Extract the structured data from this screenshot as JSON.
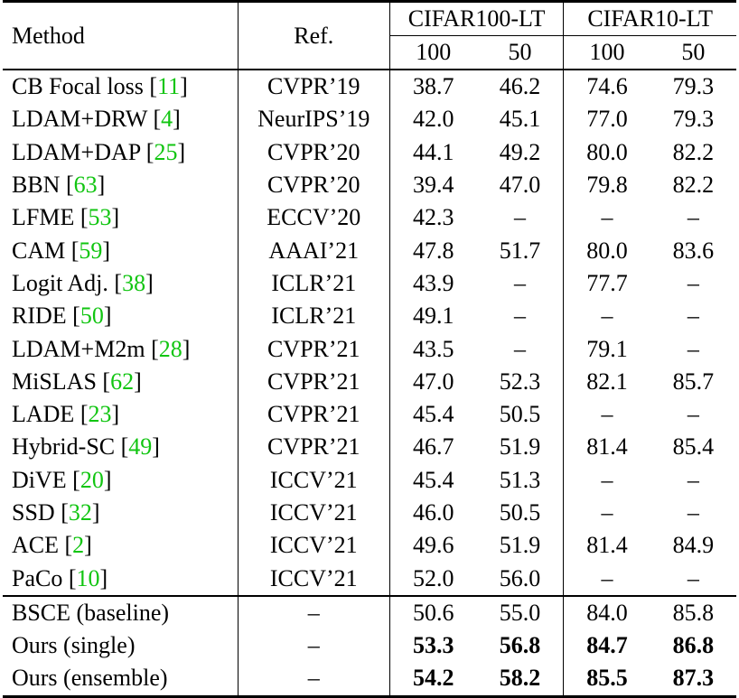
{
  "table": {
    "headers": {
      "method": "Method",
      "ref": "Ref.",
      "group1": "CIFAR100-LT",
      "group2": "CIFAR10-LT",
      "sub": [
        "100",
        "50",
        "100",
        "50"
      ]
    },
    "rows": [
      {
        "name": "CB Focal loss ",
        "cite": "11",
        "ref": "CVPR’19",
        "v": [
          "38.7",
          "46.2",
          "74.6",
          "79.3"
        ]
      },
      {
        "name": "LDAM+DRW ",
        "cite": "4",
        "ref": "NeurIPS’19",
        "v": [
          "42.0",
          "45.1",
          "77.0",
          "79.3"
        ]
      },
      {
        "name": "LDAM+DAP ",
        "cite": "25",
        "ref": "CVPR’20",
        "v": [
          "44.1",
          "49.2",
          "80.0",
          "82.2"
        ]
      },
      {
        "name": "BBN ",
        "cite": "63",
        "ref": "CVPR’20",
        "v": [
          "39.4",
          "47.0",
          "79.8",
          "82.2"
        ]
      },
      {
        "name": "LFME ",
        "cite": "53",
        "ref": "ECCV’20",
        "v": [
          "42.3",
          "–",
          "–",
          "–"
        ]
      },
      {
        "name": "CAM ",
        "cite": "59",
        "ref": "AAAI’21",
        "v": [
          "47.8",
          "51.7",
          "80.0",
          "83.6"
        ]
      },
      {
        "name": "Logit Adj. ",
        "cite": "38",
        "ref": "ICLR’21",
        "v": [
          "43.9",
          "–",
          "77.7",
          "–"
        ]
      },
      {
        "name": "RIDE ",
        "cite": "50",
        "ref": "ICLR’21",
        "v": [
          "49.1",
          "–",
          "–",
          "–"
        ]
      },
      {
        "name": "LDAM+M2m ",
        "cite": "28",
        "ref": "CVPR’21",
        "v": [
          "43.5",
          "–",
          "79.1",
          "–"
        ]
      },
      {
        "name": "MiSLAS ",
        "cite": "62",
        "ref": "CVPR’21",
        "v": [
          "47.0",
          "52.3",
          "82.1",
          "85.7"
        ]
      },
      {
        "name": "LADE ",
        "cite": "23",
        "ref": "CVPR’21",
        "v": [
          "45.4",
          "50.5",
          "–",
          "–"
        ]
      },
      {
        "name": "Hybrid-SC ",
        "cite": "49",
        "ref": "CVPR’21",
        "v": [
          "46.7",
          "51.9",
          "81.4",
          "85.4"
        ]
      },
      {
        "name": "DiVE ",
        "cite": "20",
        "ref": "ICCV’21",
        "v": [
          "45.4",
          "51.3",
          "–",
          "–"
        ]
      },
      {
        "name": "SSD ",
        "cite": "32",
        "ref": "ICCV’21",
        "v": [
          "46.0",
          "50.5",
          "–",
          "–"
        ]
      },
      {
        "name": "ACE ",
        "cite": "2",
        "ref": "ICCV’21",
        "v": [
          "49.6",
          "51.9",
          "81.4",
          "84.9"
        ]
      },
      {
        "name": "PaCo ",
        "cite": "10",
        "ref": "ICCV’21",
        "v": [
          "52.0",
          "56.0",
          "–",
          "–"
        ]
      }
    ],
    "ours_rows": [
      {
        "name": "BSCE (baseline)",
        "ref": "–",
        "v": [
          "50.6",
          "55.0",
          "84.0",
          "85.8"
        ],
        "bold": false
      },
      {
        "name": "Ours (single)",
        "ref": "–",
        "v": [
          "53.3",
          "56.8",
          "84.7",
          "86.8"
        ],
        "bold": true
      },
      {
        "name": "Ours (ensemble)",
        "ref": "–",
        "v": [
          "54.2",
          "58.2",
          "85.5",
          "87.3"
        ],
        "bold": true
      }
    ],
    "cite_color": "#11c511"
  }
}
